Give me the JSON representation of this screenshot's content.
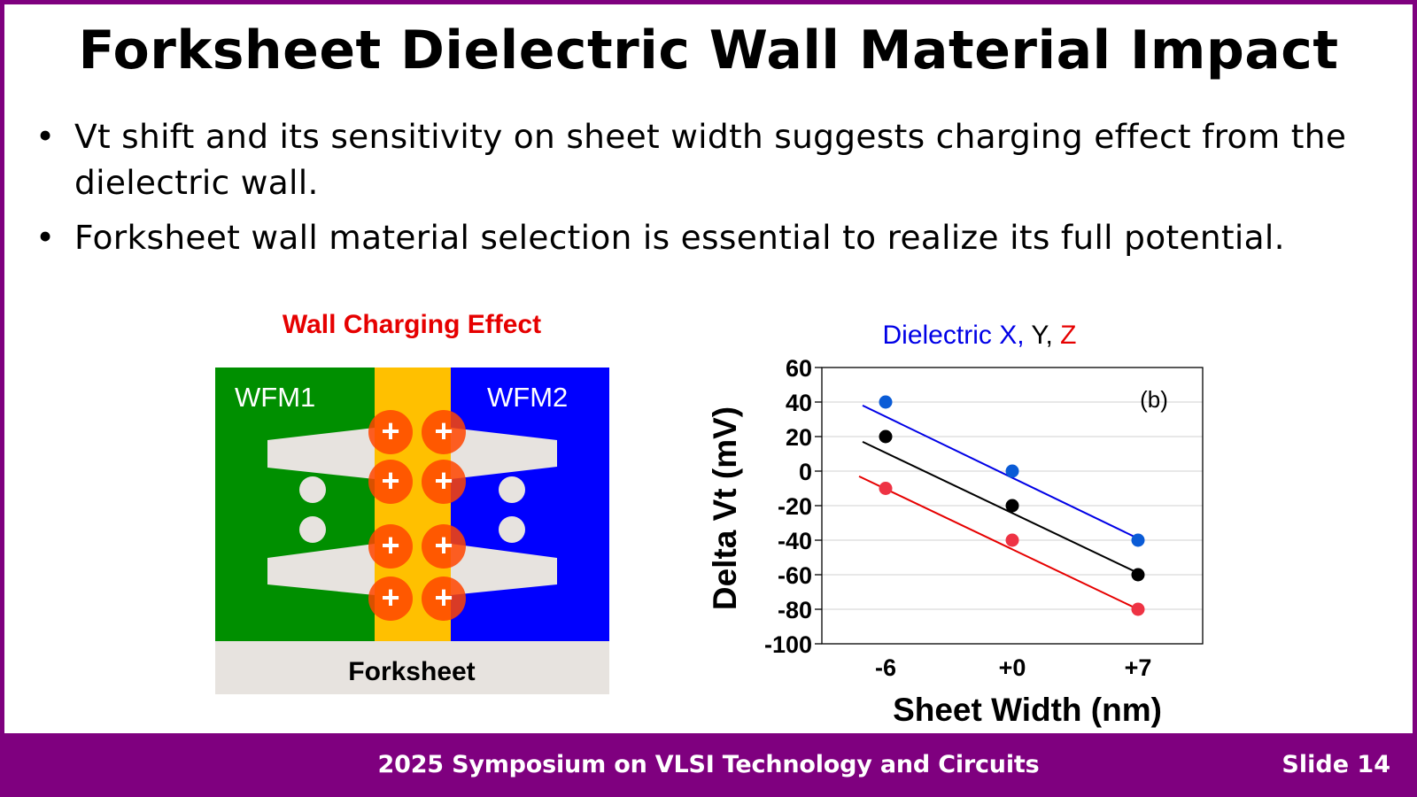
{
  "slide": {
    "title": "Forksheet Dielectric Wall Material Impact",
    "bullets": [
      {
        "marker": "•",
        "text": "Vt shift and its sensitivity on sheet width suggests charging effect from the dielectric wall."
      },
      {
        "marker": "•",
        "text": "Forksheet wall material selection is essential to realize its full potential."
      }
    ],
    "footer": {
      "conference": "2025 Symposium on VLSI Technology and Circuits",
      "slide_number": "Slide 14"
    },
    "colors": {
      "frame": "#7f007f",
      "accent_red": "#e60000"
    }
  },
  "diagram": {
    "title": "Wall Charging Effect",
    "left_region_label": "WFM1",
    "right_region_label": "WFM2",
    "base_label": "Forksheet",
    "charge_symbol": "+",
    "charge_count": 8,
    "colors": {
      "wfm1": "#008f00",
      "wall": "#ffc000",
      "wfm2": "#0000ff",
      "sheet": "#e7e3df",
      "charge": "#ff4500"
    }
  },
  "chart_data": {
    "type": "scatter",
    "title_parts": [
      {
        "text": "Dielectric X,",
        "color": "#0000e6"
      },
      {
        "text": " Y,",
        "color": "#000000"
      },
      {
        "text": " Z",
        "color": "#e60000"
      }
    ],
    "annotation": "(b)",
    "xlabel": "Sheet Width (nm)",
    "ylabel": "Delta Vt (mV)",
    "categories": [
      "-6",
      "+0",
      "+7"
    ],
    "x": [
      -6,
      0,
      7
    ],
    "ylim": [
      -100,
      60
    ],
    "yticks": [
      60,
      40,
      20,
      0,
      -20,
      -40,
      -60,
      -80,
      -100
    ],
    "grid": true,
    "series": [
      {
        "name": "Dielectric X",
        "color": "#0a5bd6",
        "line_color": "#0000e6",
        "values": [
          40,
          0,
          -40
        ],
        "fit": {
          "start": 38,
          "end": -39
        }
      },
      {
        "name": "Dielectric Y",
        "color": "#000000",
        "line_color": "#000000",
        "values": [
          20,
          -20,
          -60
        ],
        "fit": {
          "start": 17,
          "end": -59
        }
      },
      {
        "name": "Dielectric Z",
        "color": "#ee3344",
        "line_color": "#e60000",
        "values": [
          -10,
          -40,
          -80
        ],
        "fit": {
          "start": -3,
          "end": -80
        }
      }
    ]
  }
}
